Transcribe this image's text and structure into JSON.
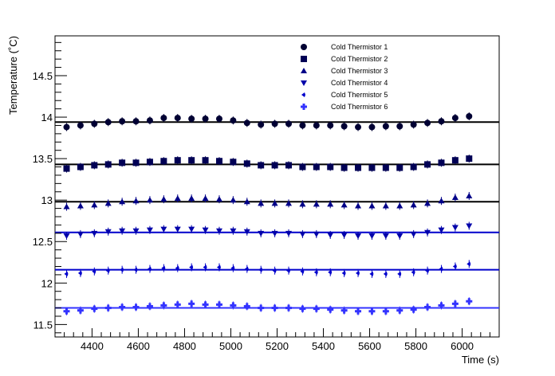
{
  "chart_data": {
    "type": "scatter",
    "title": "",
    "xlabel": "Time (s)",
    "ylabel": "Temperature (˚C)",
    "xlim": [
      4240,
      6160
    ],
    "ylim": [
      11.35,
      14.98
    ],
    "x_ticks": [
      4400,
      4600,
      4800,
      5000,
      5200,
      5400,
      5600,
      5800,
      6000
    ],
    "y_ticks": [
      11.5,
      12,
      12.5,
      13,
      13.5,
      14,
      14.5
    ],
    "grid": false,
    "legend_position": "top-right",
    "x": [
      4290,
      4350,
      4410,
      4470,
      4530,
      4590,
      4650,
      4710,
      4770,
      4830,
      4890,
      4950,
      5010,
      5070,
      5130,
      5190,
      5250,
      5310,
      5370,
      5430,
      5490,
      5550,
      5610,
      5670,
      5730,
      5790,
      5850,
      5910,
      5970,
      6030
    ],
    "series": [
      {
        "name": "Cold Thermistor 1",
        "marker": "circle",
        "color": "#000033",
        "fit_value": 13.94,
        "fit_color": "#000000",
        "values": [
          13.88,
          13.9,
          13.92,
          13.94,
          13.95,
          13.95,
          13.96,
          13.99,
          13.99,
          13.98,
          13.98,
          13.98,
          13.96,
          13.93,
          13.91,
          13.92,
          13.92,
          13.9,
          13.9,
          13.9,
          13.89,
          13.88,
          13.88,
          13.89,
          13.89,
          13.91,
          13.93,
          13.95,
          13.99,
          14.01
        ]
      },
      {
        "name": "Cold Thermistor 2",
        "marker": "square",
        "color": "#000055",
        "fit_value": 13.43,
        "fit_color": "#000000",
        "values": [
          13.38,
          13.4,
          13.42,
          13.43,
          13.45,
          13.45,
          13.46,
          13.47,
          13.48,
          13.48,
          13.48,
          13.47,
          13.46,
          13.44,
          13.42,
          13.42,
          13.42,
          13.4,
          13.4,
          13.4,
          13.39,
          13.39,
          13.39,
          13.39,
          13.39,
          13.4,
          13.43,
          13.45,
          13.48,
          13.5
        ]
      },
      {
        "name": "Cold Thermistor 3",
        "marker": "triangle-up",
        "color": "#000088",
        "fit_value": 12.98,
        "fit_color": "#000000",
        "values": [
          12.92,
          12.93,
          12.94,
          12.96,
          12.98,
          12.99,
          13.0,
          13.01,
          13.02,
          13.02,
          13.02,
          13.01,
          13.0,
          12.98,
          12.96,
          12.96,
          12.96,
          12.95,
          12.95,
          12.95,
          12.94,
          12.93,
          12.93,
          12.93,
          12.93,
          12.94,
          12.96,
          12.99,
          13.03,
          13.05
        ]
      },
      {
        "name": "Cold Thermistor 4",
        "marker": "triangle-down",
        "color": "#0000aa",
        "fit_value": 12.61,
        "fit_color": "#0000cc",
        "values": [
          12.57,
          12.59,
          12.6,
          12.62,
          12.63,
          12.63,
          12.64,
          12.65,
          12.65,
          12.65,
          12.64,
          12.63,
          12.63,
          12.62,
          12.6,
          12.6,
          12.6,
          12.59,
          12.59,
          12.58,
          12.58,
          12.57,
          12.57,
          12.57,
          12.57,
          12.59,
          12.61,
          12.64,
          12.67,
          12.69
        ]
      },
      {
        "name": "Cold Thermistor 5",
        "marker": "diamond-left",
        "color": "#0000cc",
        "fit_value": 12.16,
        "fit_color": "#0000cc",
        "values": [
          12.11,
          12.12,
          12.14,
          12.15,
          12.16,
          12.16,
          12.17,
          12.18,
          12.18,
          12.19,
          12.19,
          12.19,
          12.18,
          12.17,
          12.16,
          12.15,
          12.15,
          12.14,
          12.13,
          12.13,
          12.12,
          12.12,
          12.11,
          12.11,
          12.11,
          12.13,
          12.15,
          12.17,
          12.2,
          12.23
        ]
      },
      {
        "name": "Cold Thermistor 6",
        "marker": "cross",
        "color": "#3333ff",
        "fit_value": 11.7,
        "fit_color": "#3333ff",
        "values": [
          11.66,
          11.67,
          11.69,
          11.7,
          11.71,
          11.71,
          11.72,
          11.73,
          11.74,
          11.75,
          11.74,
          11.74,
          11.73,
          11.72,
          11.7,
          11.7,
          11.7,
          11.69,
          11.69,
          11.68,
          11.67,
          11.66,
          11.66,
          11.66,
          11.67,
          11.68,
          11.71,
          11.73,
          11.75,
          11.78
        ]
      }
    ]
  }
}
